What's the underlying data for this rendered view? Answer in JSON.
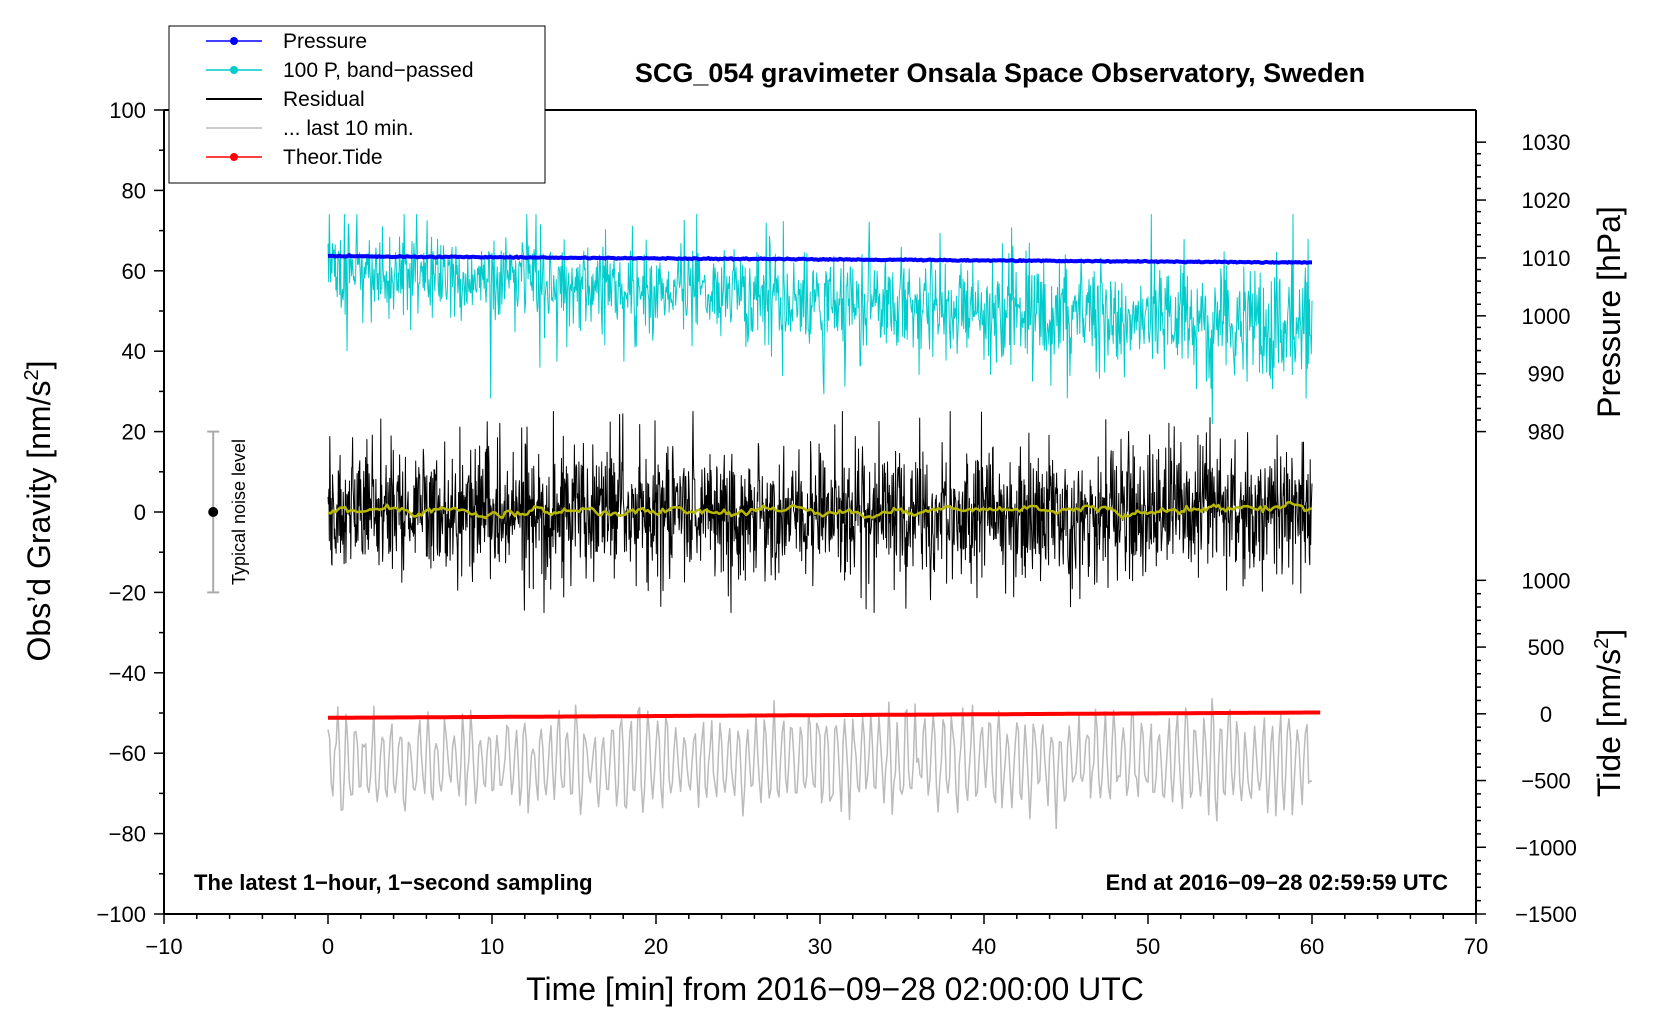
{
  "chart_data": {
    "type": "line",
    "title": "SCG_054 gravimeter Onsala Space Observatory, Sweden",
    "xlabel": "Time [min] from 2016−09−28 02:00:00 UTC",
    "ylabel_left": "Obs’d Gravity [nm/s",
    "ylabel_left_sup": "2",
    "ylabel_left_end": "]",
    "ylabel_right_pressure": "Pressure [hPa]",
    "ylabel_right_tide": "Tide [nm/s",
    "ylabel_right_tide_sup": "2",
    "ylabel_right_tide_end": "]",
    "xlim": [
      -10,
      70
    ],
    "ylim_left": [
      -100,
      100
    ],
    "x_ticks": [
      -10,
      0,
      10,
      20,
      30,
      40,
      50,
      60,
      70
    ],
    "x_tick_labels": [
      "−10",
      "0",
      "10",
      "20",
      "30",
      "40",
      "50",
      "60",
      "70"
    ],
    "y_ticks_left": [
      -100,
      -80,
      -60,
      -40,
      -20,
      0,
      20,
      40,
      60,
      80,
      100
    ],
    "y_tick_labels_left": [
      "−100",
      "−80",
      "−60",
      "−40",
      "−20",
      "0",
      "20",
      "40",
      "60",
      "80",
      "100"
    ],
    "pressure_axis": {
      "range": [
        980,
        1030
      ],
      "ticks": [
        980,
        990,
        1000,
        1010,
        1020,
        1030
      ],
      "tick_labels": [
        "980",
        "990",
        "1000",
        "1010",
        "1020",
        "1030"
      ],
      "left_value_at_980": 20,
      "left_value_at_1030": 92
    },
    "tide_axis": {
      "range": [
        -1500,
        1000
      ],
      "ticks": [
        -1500,
        -1000,
        -500,
        0,
        500,
        1000
      ],
      "tick_labels": [
        "−1500",
        "−1000",
        "−500",
        "0",
        "500",
        "1000"
      ],
      "left_value_at_minus1500": -100,
      "left_value_at_1000": -17
    },
    "legend": {
      "position": "top-left",
      "entries": [
        {
          "label": "Pressure",
          "color": "#0000ff",
          "marker": true
        },
        {
          "label": "100 P, band−passed",
          "color": "#00cccc",
          "marker": true
        },
        {
          "label": "Residual",
          "color": "#000000",
          "marker": false
        },
        {
          "label": "... last 10 min.",
          "color": "#bbbbbb",
          "marker": false
        },
        {
          "label": "Theor.Tide",
          "color": "#ff0000",
          "marker": true
        }
      ]
    },
    "noise_marker": {
      "x": -7,
      "y_center": 0,
      "y_low": -20,
      "y_high": 20,
      "label": "Typical noise level"
    },
    "annotations": {
      "bottom_left": "The latest 1−hour, 1−second sampling",
      "bottom_right": "End at 2016−09−28 02:59:59 UTC"
    },
    "series": [
      {
        "name": "Pressure",
        "color": "#0000ff",
        "axis": "pressure",
        "x_range": [
          0,
          60
        ],
        "start_value": 1010.3,
        "end_value": 1009.2
      },
      {
        "name": "100 P, band−passed",
        "color": "#00cccc",
        "axis": "left",
        "x_range": [
          0,
          60
        ],
        "start_value": 60,
        "end_value": 45,
        "amplitude": 8,
        "min": 22,
        "max": 74
      },
      {
        "name": "Residual",
        "color": "#000000",
        "axis": "left",
        "x_range": [
          0,
          60
        ],
        "start_value": 0,
        "end_value": 0,
        "amplitude": 8,
        "min": -25,
        "max": 25
      },
      {
        "name": "Residual smoothed",
        "color": "#b8b800",
        "axis": "left",
        "x_range": [
          0,
          60
        ],
        "start_value": 0,
        "end_value": 1,
        "amplitude": 1.5
      },
      {
        "name": "... last 10 min.",
        "color": "#bbbbbb",
        "axis": "left",
        "x_range": [
          0,
          60
        ],
        "start_value": -62,
        "end_value": -62,
        "amplitude": 9,
        "min": -86,
        "max": -42
      },
      {
        "name": "Theor.Tide",
        "color": "#ff0000",
        "axis": "tide",
        "x_range": [
          0,
          60.5
        ],
        "start_value": -30,
        "end_value": 10
      }
    ]
  }
}
